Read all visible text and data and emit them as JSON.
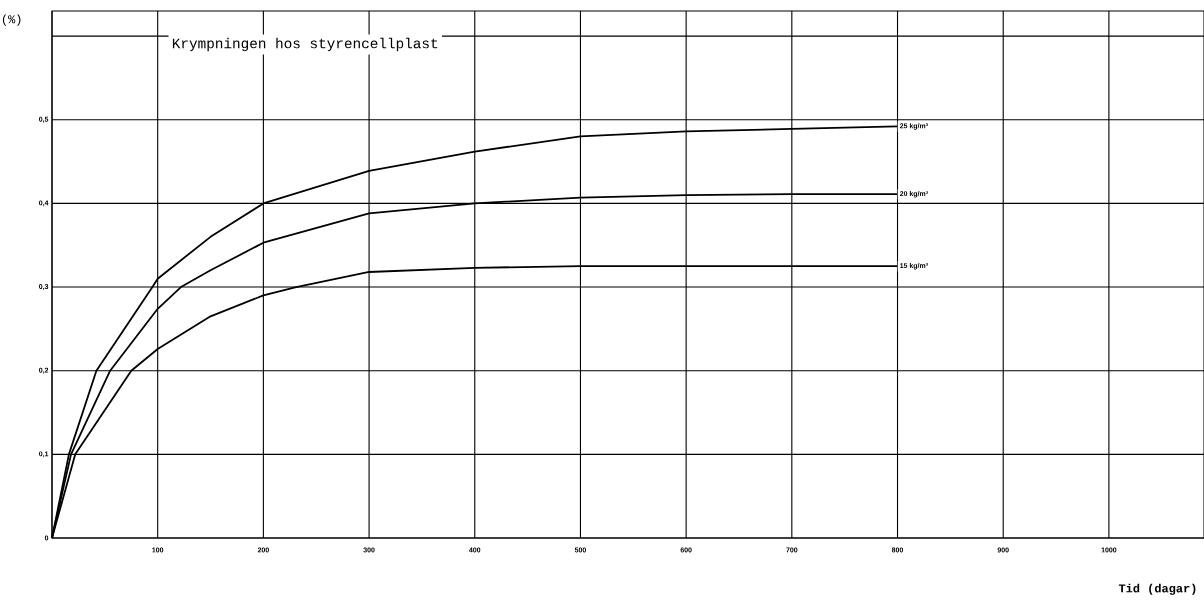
{
  "chart_data": {
    "type": "line",
    "title": "Krympningen hos styrencellplast",
    "xlabel": "Tid  (dagar)",
    "ylabel": "(%)",
    "xlim": [
      0,
      1090
    ],
    "ylim": [
      0,
      0.63
    ],
    "xticks": [
      {
        "value": 0,
        "label": null
      },
      100,
      200,
      300,
      400,
      500,
      600,
      700,
      800,
      900,
      1000
    ],
    "yticks": [
      0,
      {
        "value": 0.1,
        "label": "0,1"
      },
      {
        "value": 0.2,
        "label": "0,2"
      },
      {
        "value": 0.3,
        "label": "0,3"
      },
      {
        "value": 0.4,
        "label": "0,4"
      },
      {
        "value": 0.5,
        "label": "0,5"
      },
      {
        "value": 0.6,
        "label": null
      }
    ],
    "grid": true,
    "series": [
      {
        "name": "25 kg/m³",
        "color": "#000000",
        "x": [
          0,
          16,
          42,
          95,
          100,
          150,
          200,
          300,
          400,
          500,
          600,
          700,
          800
        ],
        "values": [
          0,
          0.1,
          0.2,
          0.3,
          0.31,
          0.36,
          0.4,
          0.439,
          0.462,
          0.48,
          0.486,
          0.489,
          0.492
        ]
      },
      {
        "name": "20 kg/m³",
        "color": "#000000",
        "x": [
          0,
          18,
          55,
          100,
          122,
          150,
          200,
          300,
          400,
          500,
          600,
          700,
          800
        ],
        "values": [
          0,
          0.1,
          0.2,
          0.274,
          0.3,
          0.32,
          0.353,
          0.388,
          0.4,
          0.407,
          0.41,
          0.411,
          0.411
        ]
      },
      {
        "name": "15 kg/m³",
        "color": "#000000",
        "x": [
          0,
          22,
          75,
          100,
          150,
          200,
          231,
          300,
          400,
          500,
          600,
          700,
          800
        ],
        "values": [
          0,
          0.1,
          0.2,
          0.226,
          0.265,
          0.29,
          0.3,
          0.318,
          0.323,
          0.325,
          0.325,
          0.325,
          0.325
        ]
      }
    ]
  }
}
